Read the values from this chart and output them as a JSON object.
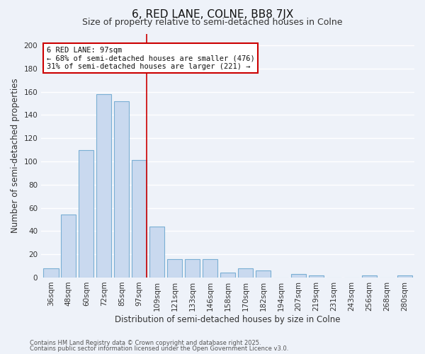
{
  "title": "6, RED LANE, COLNE, BB8 7JX",
  "subtitle": "Size of property relative to semi-detached houses in Colne",
  "xlabel": "Distribution of semi-detached houses by size in Colne",
  "ylabel": "Number of semi-detached properties",
  "bar_labels": [
    "36sqm",
    "48sqm",
    "60sqm",
    "72sqm",
    "85sqm",
    "97sqm",
    "109sqm",
    "121sqm",
    "133sqm",
    "146sqm",
    "158sqm",
    "170sqm",
    "182sqm",
    "194sqm",
    "207sqm",
    "219sqm",
    "231sqm",
    "243sqm",
    "256sqm",
    "268sqm",
    "280sqm"
  ],
  "bar_values": [
    8,
    54,
    110,
    158,
    152,
    101,
    44,
    16,
    16,
    16,
    4,
    8,
    6,
    0,
    3,
    2,
    0,
    0,
    2,
    0,
    2
  ],
  "bar_color": "#c9d9ef",
  "bar_edge_color": "#7aafd4",
  "highlight_bar_index": 5,
  "highlight_line_color": "#cc0000",
  "annotation_text": "6 RED LANE: 97sqm\n← 68% of semi-detached houses are smaller (476)\n31% of semi-detached houses are larger (221) →",
  "annotation_box_color": "#ffffff",
  "annotation_box_edge": "#cc0000",
  "ylim": [
    0,
    210
  ],
  "yticks": [
    0,
    20,
    40,
    60,
    80,
    100,
    120,
    140,
    160,
    180,
    200
  ],
  "footnote1": "Contains HM Land Registry data © Crown copyright and database right 2025.",
  "footnote2": "Contains public sector information licensed under the Open Government Licence v3.0.",
  "background_color": "#eef2f9",
  "grid_color": "#ffffff",
  "title_fontsize": 11,
  "subtitle_fontsize": 9,
  "axis_fontsize": 8.5,
  "tick_fontsize": 7.5,
  "footnote_fontsize": 6.0
}
